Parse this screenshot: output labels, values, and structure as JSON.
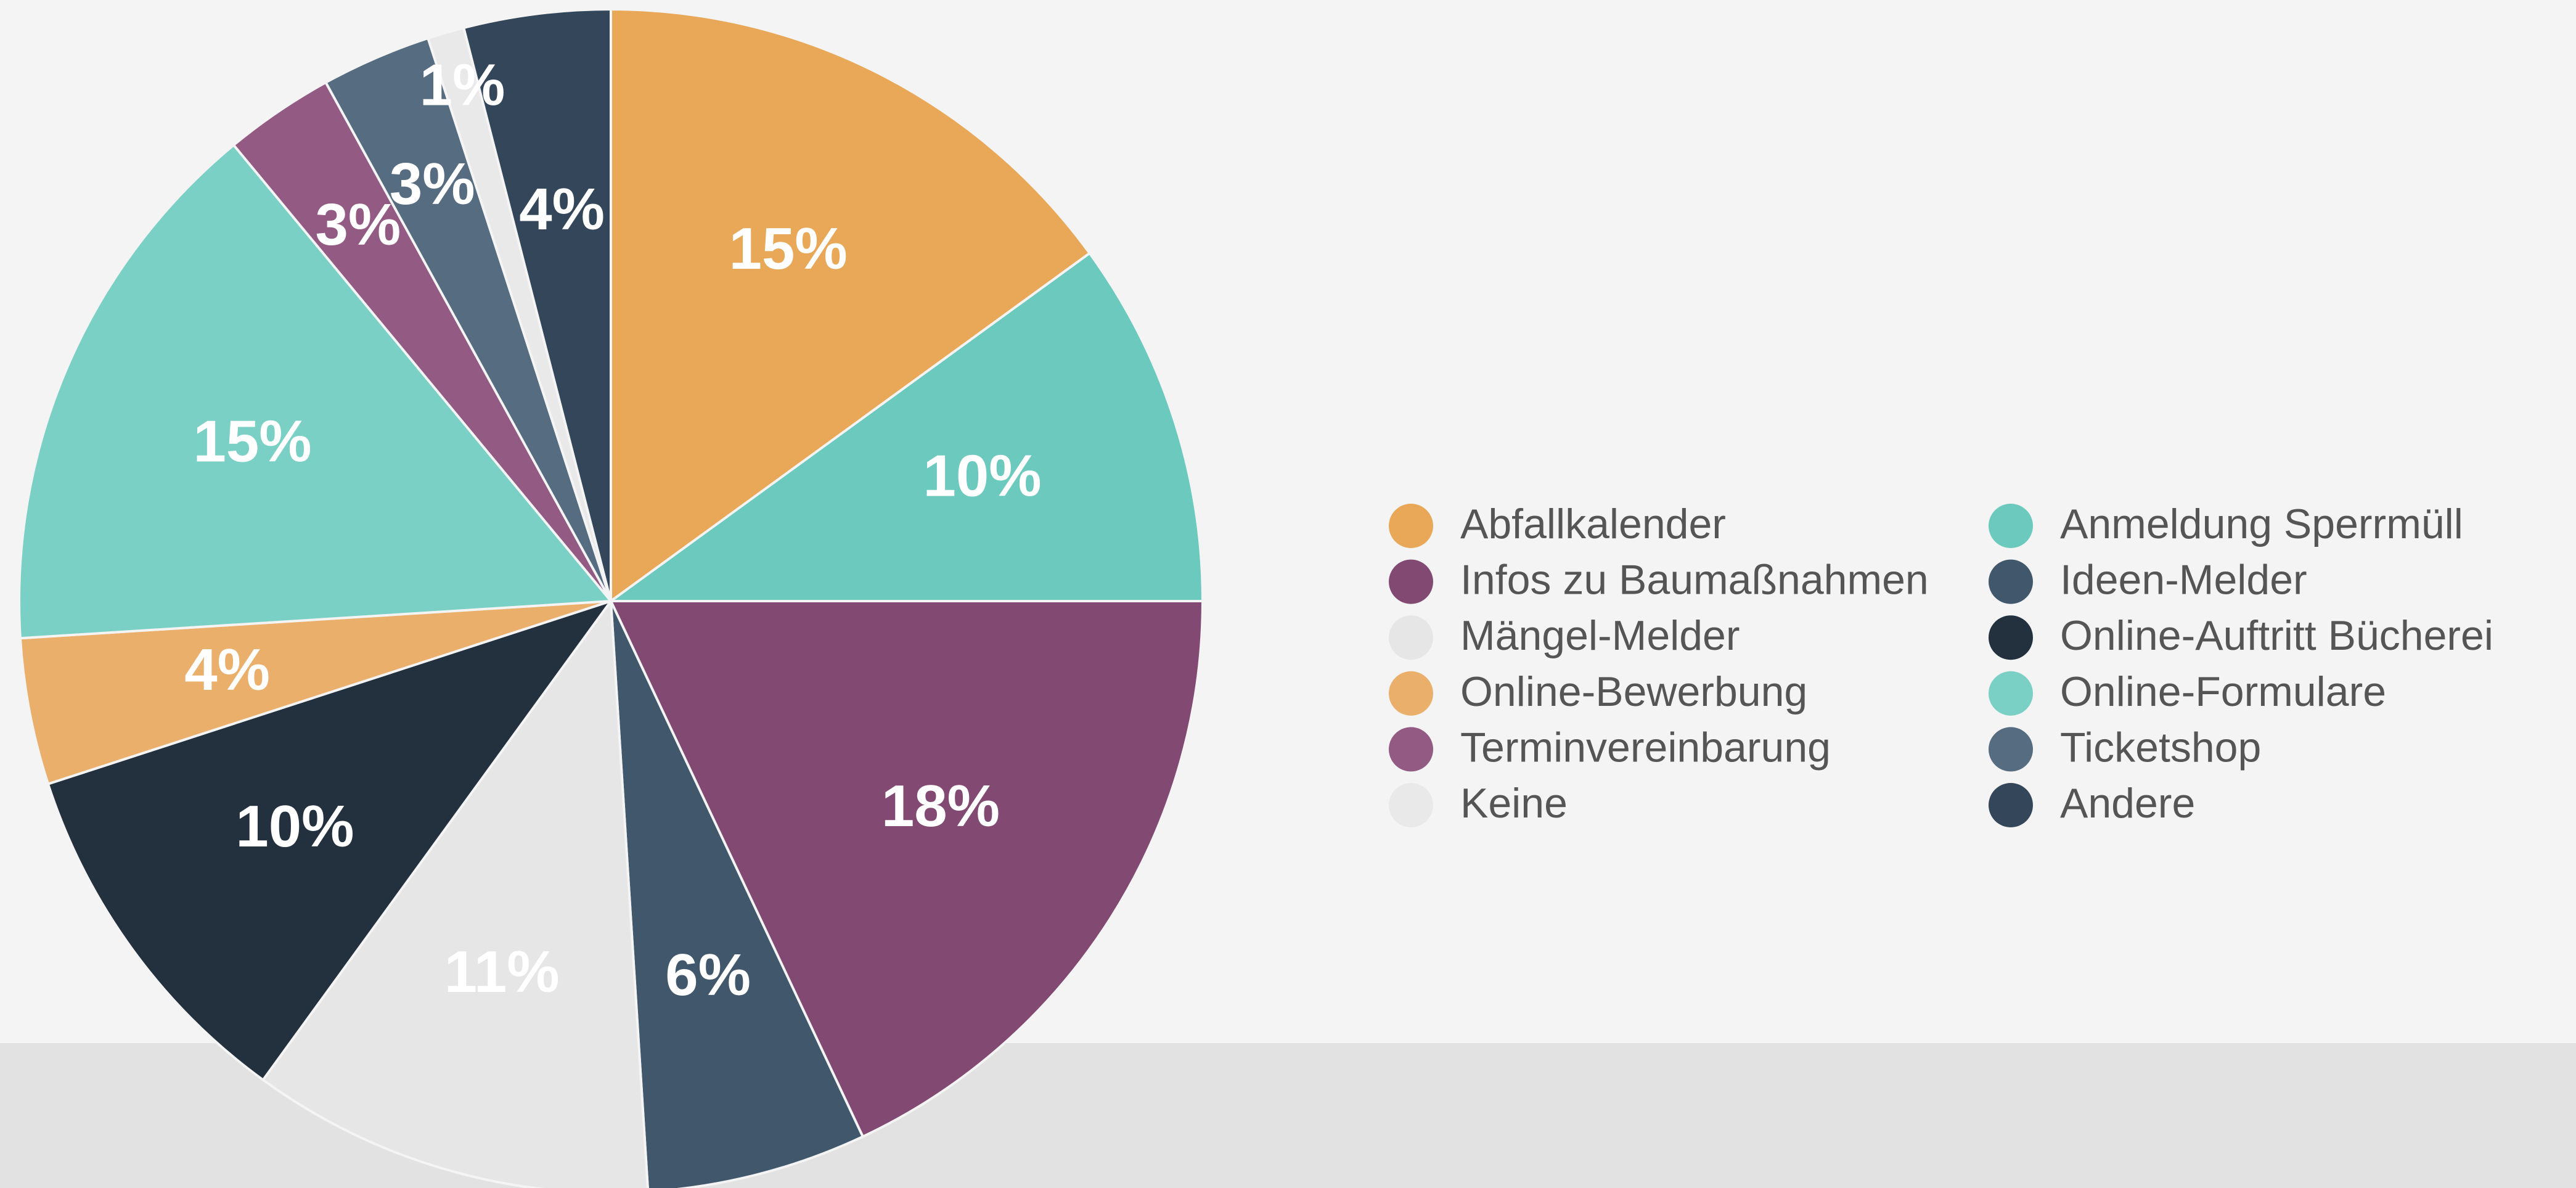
{
  "chart_data": {
    "type": "pie",
    "categories": [
      "Abfallkalender",
      "Anmeldung Sperrmüll",
      "Infos zu Baumaßnahmen",
      "Ideen-Melder",
      "Mängel-Melder",
      "Online-Auftritt Bücherei",
      "Online-Bewerbung",
      "Online-Formulare",
      "Terminvereinbarung",
      "Ticketshop",
      "Keine",
      "Andere"
    ],
    "values": [
      15,
      10,
      18,
      6,
      11,
      10,
      4,
      15,
      3,
      3,
      1,
      4
    ],
    "value_labels": [
      "15%",
      "10%",
      "18%",
      "6%",
      "11%",
      "10%",
      "4%",
      "15%",
      "3%",
      "3%",
      "1%",
      "4%"
    ],
    "colors": [
      "#e8a857",
      "#6bc9bd",
      "#824a73",
      "#41586c",
      "#e6e6e6",
      "#23303e",
      "#ebaf6c",
      "#7bd0c5",
      "#935a83",
      "#566c80",
      "#e9e9e9",
      "#34475a"
    ],
    "legend": "right"
  }
}
